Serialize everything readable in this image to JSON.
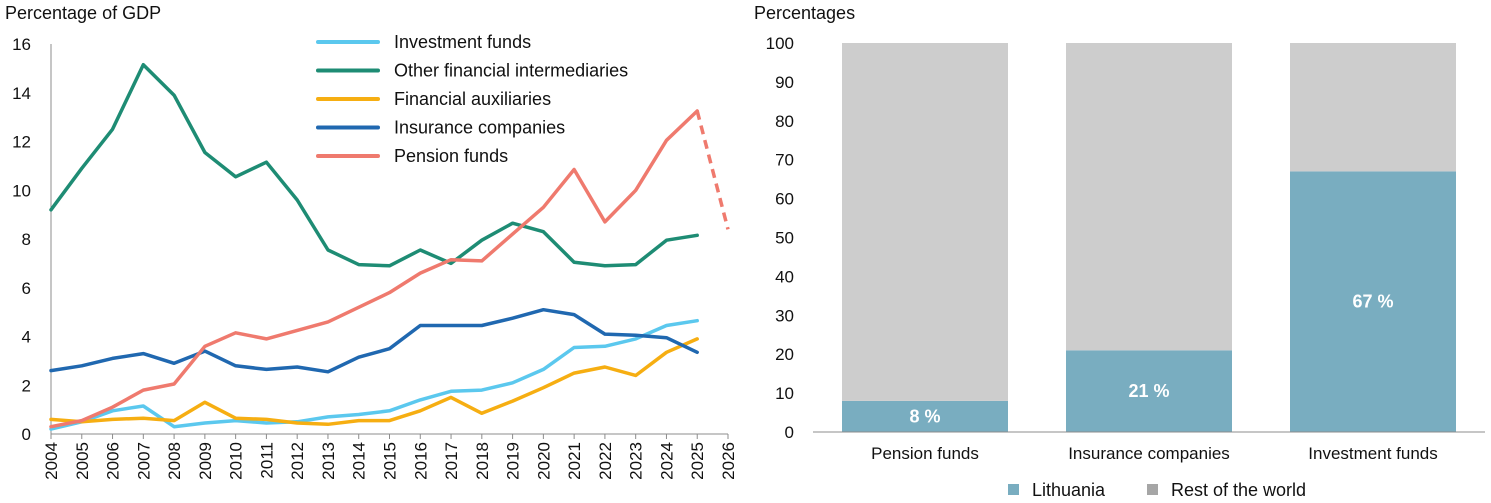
{
  "chart_data": [
    {
      "type": "line",
      "ylabel": "Percentage of GDP",
      "ylim": [
        0,
        16
      ],
      "yticks": [
        0,
        2,
        4,
        6,
        8,
        10,
        12,
        14,
        16
      ],
      "x": [
        "2004",
        "2005",
        "2006",
        "2007",
        "2008",
        "2009",
        "2010",
        "2011",
        "2012",
        "2013",
        "2014",
        "2015",
        "2016",
        "2017",
        "2018",
        "2019",
        "2020",
        "2021",
        "2022",
        "2023",
        "2024",
        "2025",
        "2026"
      ],
      "legend_position": "top",
      "series": [
        {
          "name": "Investment funds",
          "color": "#5BC8EE",
          "values": [
            0.2,
            0.5,
            0.95,
            1.15,
            0.3,
            0.45,
            0.55,
            0.45,
            0.5,
            0.7,
            0.8,
            0.95,
            1.4,
            1.75,
            1.8,
            2.1,
            2.65,
            3.55,
            3.6,
            3.9,
            4.45,
            4.65,
            null
          ]
        },
        {
          "name": "Other financial intermediaries",
          "color": "#1E8C74",
          "values": [
            9.2,
            10.9,
            12.5,
            15.15,
            13.9,
            11.55,
            10.55,
            11.15,
            9.6,
            7.55,
            6.95,
            6.9,
            7.55,
            7.0,
            7.95,
            8.65,
            8.3,
            7.05,
            6.9,
            6.95,
            7.95,
            8.15,
            null
          ]
        },
        {
          "name": "Financial auxiliaries",
          "color": "#F6AE12",
          "values": [
            0.6,
            0.5,
            0.6,
            0.65,
            0.55,
            1.3,
            0.65,
            0.6,
            0.45,
            0.4,
            0.55,
            0.55,
            0.95,
            1.5,
            0.85,
            1.35,
            1.9,
            2.5,
            2.75,
            2.4,
            3.35,
            3.9,
            null
          ]
        },
        {
          "name": "Insurance companies",
          "color": "#2068B0",
          "values": [
            2.6,
            2.8,
            3.1,
            3.3,
            2.9,
            3.4,
            2.8,
            2.65,
            2.75,
            2.55,
            3.15,
            3.5,
            4.45,
            4.45,
            4.45,
            4.75,
            5.1,
            4.9,
            4.1,
            4.05,
            3.95,
            3.35,
            null
          ]
        },
        {
          "name": "Pension funds",
          "color": "#EF7A6E",
          "values": [
            0.3,
            0.55,
            1.1,
            1.8,
            2.05,
            3.6,
            4.15,
            3.9,
            4.25,
            4.6,
            5.2,
            5.8,
            6.6,
            7.15,
            7.1,
            8.2,
            9.3,
            10.85,
            8.7,
            10.0,
            12.05,
            13.25,
            null
          ],
          "projection": {
            "x": [
              "2025",
              "2026"
            ],
            "values": [
              13.25,
              8.4
            ],
            "dashed": true
          }
        }
      ]
    },
    {
      "type": "bar",
      "stacked": true,
      "ylabel": "Percentages",
      "ylim": [
        0,
        100
      ],
      "yticks": [
        0,
        10,
        20,
        30,
        40,
        50,
        60,
        70,
        80,
        90,
        100
      ],
      "categories": [
        "Pension funds",
        "Insurance companies",
        "Investment funds"
      ],
      "legend_position": "bottom",
      "series": [
        {
          "name": "Lithuania",
          "color": "#79ADC0",
          "values": [
            8,
            21,
            67
          ],
          "data_labels": [
            "8 %",
            "21 %",
            "67 %"
          ]
        },
        {
          "name": "Rest of the world",
          "color": "#CDCDCD",
          "values": [
            92,
            79,
            33
          ]
        }
      ]
    }
  ]
}
